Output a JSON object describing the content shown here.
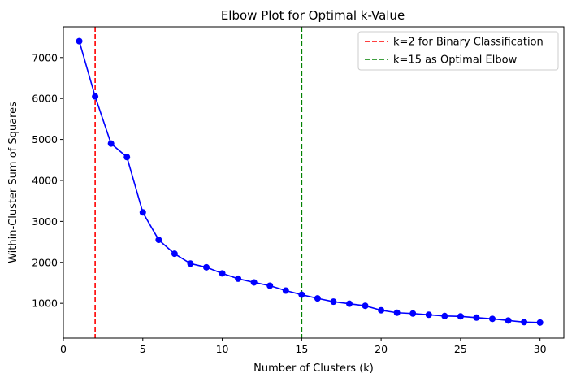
{
  "chart_data": {
    "type": "line",
    "title": "Elbow Plot for Optimal k-Value",
    "xlabel": "Number of Clusters (k)",
    "ylabel": "Within-Cluster Sum of Squares",
    "xlim": [
      0,
      31.5
    ],
    "ylim": [
      150,
      7750
    ],
    "x_ticks": [
      0,
      5,
      10,
      15,
      20,
      25,
      30
    ],
    "y_ticks": [
      1000,
      2000,
      3000,
      4000,
      5000,
      6000,
      7000
    ],
    "grid": false,
    "legend_position": "top-right",
    "series": [
      {
        "color": "#0000ff",
        "marker": "circle",
        "x": [
          1,
          2,
          3,
          4,
          5,
          6,
          7,
          8,
          9,
          10,
          11,
          12,
          13,
          14,
          15,
          16,
          17,
          18,
          19,
          20,
          21,
          22,
          23,
          24,
          25,
          26,
          27,
          28,
          29,
          30
        ],
        "values": [
          7400,
          6050,
          4900,
          4570,
          3220,
          2550,
          2210,
          1970,
          1880,
          1730,
          1600,
          1510,
          1430,
          1310,
          1210,
          1120,
          1040,
          990,
          940,
          830,
          770,
          750,
          720,
          690,
          680,
          650,
          620,
          580,
          540,
          530
        ]
      }
    ],
    "reference_lines": [
      {
        "x": 2,
        "color": "#ff0000",
        "style": "dashed",
        "label": "k=2 for Binary Classification"
      },
      {
        "x": 15,
        "color": "#008000",
        "style": "dashed",
        "label": "k=15 as Optimal Elbow"
      }
    ]
  }
}
